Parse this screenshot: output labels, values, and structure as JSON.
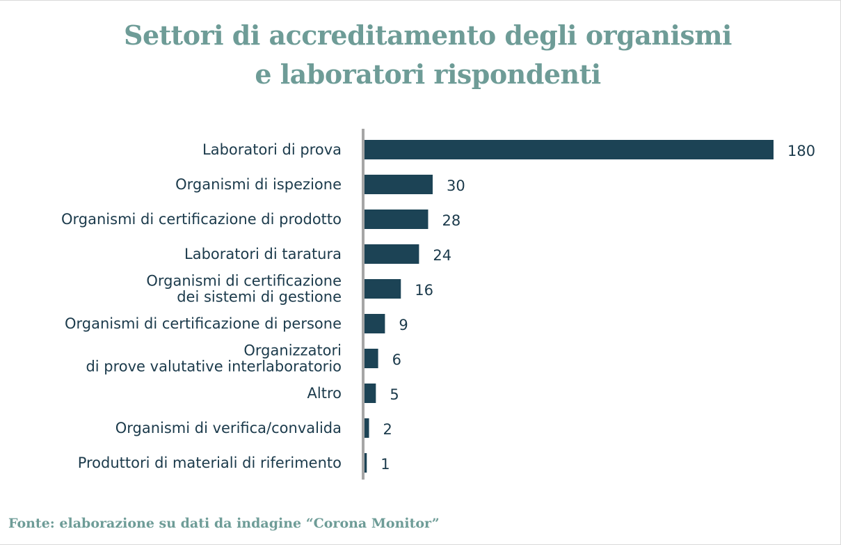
{
  "colors": {
    "title": "#6e9c97",
    "bar": "#1c4355",
    "text": "#1b3a4b",
    "axis": "#a6a6a6",
    "source": "#6e9c97"
  },
  "chart_data": {
    "type": "bar",
    "orientation": "horizontal",
    "title_lines": [
      "Settori di accreditamento degli organismi",
      "e laboratori rispondenti"
    ],
    "categories": [
      [
        "Laboratori di prova"
      ],
      [
        "Organismi di ispezione"
      ],
      [
        "Organismi di certificazione di prodotto"
      ],
      [
        "Laboratori di taratura"
      ],
      [
        "Organismi di certificazione",
        "dei sistemi di gestione"
      ],
      [
        "Organismi di certificazione di persone"
      ],
      [
        "Organizzatori",
        "di prove valutative interlaboratorio"
      ],
      [
        "Altro"
      ],
      [
        "Organismi di verifica/convalida"
      ],
      [
        "Produttori di materiali di riferimento"
      ]
    ],
    "values": [
      180,
      30,
      28,
      24,
      16,
      9,
      6,
      5,
      2,
      1
    ],
    "data_labels": [
      "180",
      "30",
      "28",
      "24",
      "16",
      "9",
      "6",
      "5",
      "2",
      "1"
    ],
    "xlim": [
      0,
      180
    ],
    "grid": false,
    "legend": "none"
  },
  "source_note": "Fonte: elaborazione su dati da indagine “Corona Monitor”"
}
